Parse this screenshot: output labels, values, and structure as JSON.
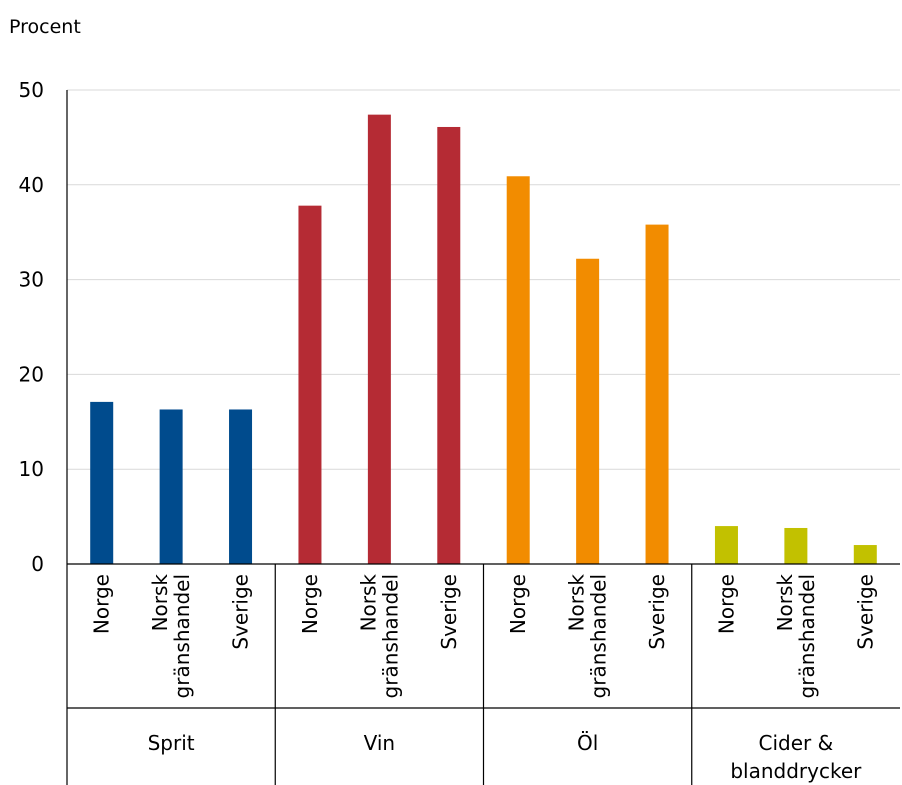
{
  "chart_data": {
    "type": "bar",
    "ylabel": "Procent",
    "ylim": [
      0,
      50
    ],
    "yticks": [
      0,
      10,
      20,
      30,
      40,
      50
    ],
    "grid": true,
    "groups": [
      {
        "name": "Sprit",
        "color": "#004b8d",
        "bars": [
          {
            "label": "Norge",
            "value": 17.1
          },
          {
            "label": "Norsk gränshandel",
            "value": 16.3
          },
          {
            "label": "Sverige",
            "value": 16.3
          }
        ]
      },
      {
        "name": "Vin",
        "color": "#b52b34",
        "bars": [
          {
            "label": "Norge",
            "value": 37.8
          },
          {
            "label": "Norsk gränshandel",
            "value": 47.4
          },
          {
            "label": "Sverige",
            "value": 46.1
          }
        ]
      },
      {
        "name": "Öl",
        "color": "#f28c00",
        "bars": [
          {
            "label": "Norge",
            "value": 40.9
          },
          {
            "label": "Norsk gränshandel",
            "value": 32.2
          },
          {
            "label": "Sverige",
            "value": 35.8
          }
        ]
      },
      {
        "name": "Cider & blanddrycker",
        "color": "#c2c100",
        "bars": [
          {
            "label": "Norge",
            "value": 4.0
          },
          {
            "label": "Norsk gränshandel",
            "value": 3.8
          },
          {
            "label": "Sverige",
            "value": 2.0
          }
        ]
      }
    ]
  }
}
